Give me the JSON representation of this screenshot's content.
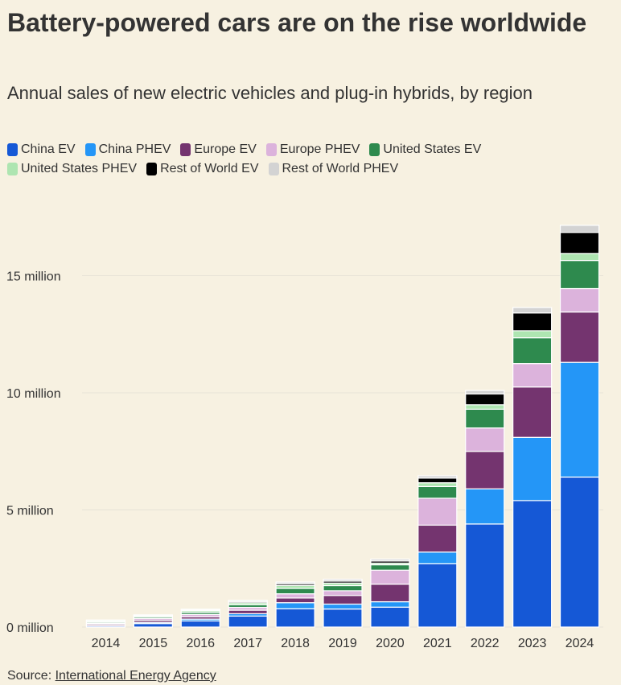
{
  "title": "Battery-powered cars are on the rise worldwide",
  "subtitle": "Annual sales of new electric vehicles and plug-in hybrids, by region",
  "source": {
    "prefix": "Source: ",
    "link_text": "International Energy Agency"
  },
  "chart_data": {
    "type": "bar",
    "stacked": true,
    "categories": [
      "2014",
      "2015",
      "2016",
      "2017",
      "2018",
      "2019",
      "2020",
      "2021",
      "2022",
      "2023",
      "2024"
    ],
    "series": [
      {
        "name": "China EV",
        "color": "#1558d6",
        "values": [
          0.05,
          0.15,
          0.26,
          0.47,
          0.78,
          0.77,
          0.85,
          2.7,
          4.4,
          5.4,
          6.4
        ]
      },
      {
        "name": "China PHEV",
        "color": "#2496f7",
        "values": [
          0.02,
          0.05,
          0.08,
          0.1,
          0.26,
          0.21,
          0.23,
          0.5,
          1.5,
          2.7,
          4.9
        ]
      },
      {
        "name": "Europe EV",
        "color": "#74346f",
        "values": [
          0.06,
          0.09,
          0.1,
          0.15,
          0.2,
          0.37,
          0.75,
          1.15,
          1.6,
          2.15,
          2.15
        ]
      },
      {
        "name": "Europe PHEV",
        "color": "#dcb3dc",
        "values": [
          0.04,
          0.08,
          0.1,
          0.12,
          0.18,
          0.2,
          0.6,
          1.15,
          1.0,
          1.0,
          1.0
        ]
      },
      {
        "name": "United States EV",
        "color": "#2e8a4e",
        "values": [
          0.05,
          0.06,
          0.09,
          0.11,
          0.23,
          0.22,
          0.23,
          0.5,
          0.8,
          1.1,
          1.2
        ]
      },
      {
        "name": "United States PHEV",
        "color": "#aee5b1",
        "values": [
          0.05,
          0.05,
          0.07,
          0.09,
          0.13,
          0.11,
          0.07,
          0.16,
          0.19,
          0.3,
          0.3
        ]
      },
      {
        "name": "Rest of World EV",
        "color": "#000000",
        "values": [
          0.01,
          0.02,
          0.03,
          0.05,
          0.07,
          0.08,
          0.09,
          0.2,
          0.46,
          0.76,
          0.9
        ]
      },
      {
        "name": "Rest of World PHEV",
        "color": "#d3d3d3",
        "values": [
          0.02,
          0.02,
          0.03,
          0.05,
          0.07,
          0.08,
          0.08,
          0.1,
          0.15,
          0.23,
          0.3
        ]
      }
    ],
    "ylim": [
      0,
      17.5
    ],
    "yticks": [
      0,
      5,
      10,
      15
    ],
    "ytick_labels": [
      "0 million",
      "5 million",
      "10 million",
      "15 million"
    ],
    "grid": true,
    "legend_position": "top"
  }
}
